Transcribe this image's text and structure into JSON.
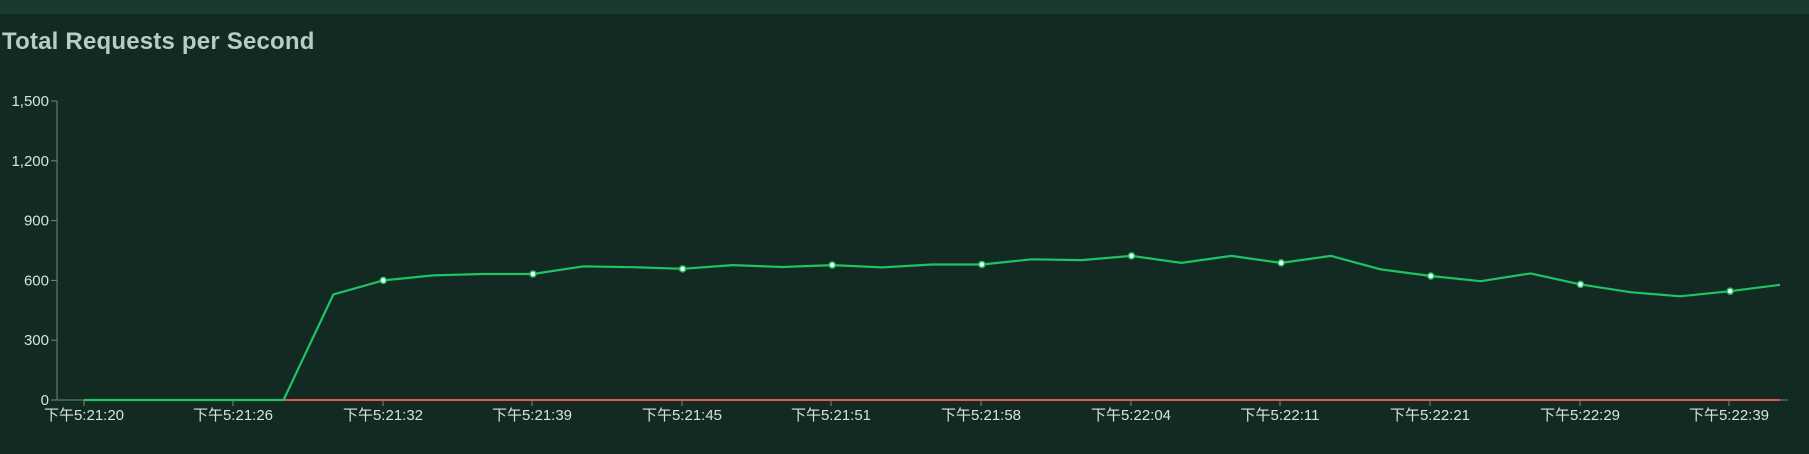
{
  "chart_data": {
    "type": "line",
    "title": "Total Requests per Second",
    "xlabel": "",
    "ylabel": "",
    "ylim": [
      0,
      1500
    ],
    "yticks": [
      "0",
      "300",
      "600",
      "900",
      "1,200",
      "1,500"
    ],
    "yticks_values": [
      0,
      300,
      600,
      900,
      1200,
      1500
    ],
    "xticks": [
      "下午5:21:20",
      "下午5:21:26",
      "下午5:21:32",
      "下午5:21:39",
      "下午5:21:45",
      "下午5:21:51",
      "下午5:21:58",
      "下午5:22:04",
      "下午5:22:11",
      "下午5:22:21",
      "下午5:22:29",
      "下午5:22:39"
    ],
    "grid": false,
    "legend": "none",
    "series": [
      {
        "color": "#1dc463",
        "values": [
          0,
          0,
          0,
          0,
          0,
          530,
          600,
          625,
          632,
          632,
          670,
          666,
          658,
          677,
          667,
          677,
          665,
          680,
          680,
          706,
          702,
          723,
          688,
          723,
          688,
          723,
          655,
          622,
          596,
          635,
          580,
          541,
          520,
          546,
          578
        ],
        "markers_at": [
          6,
          9,
          12,
          15,
          18,
          21,
          24,
          27,
          30,
          33
        ]
      },
      {
        "color": "#e0584e",
        "values": [
          0,
          0,
          0,
          0,
          0,
          0,
          0,
          0,
          0,
          0,
          0,
          0,
          0,
          0,
          0,
          0,
          0,
          0,
          0,
          0,
          0,
          0,
          0,
          0,
          0,
          0,
          0,
          0,
          0,
          0,
          0,
          0,
          0,
          0,
          0
        ]
      }
    ],
    "colors": {
      "axis": "#6f8a7e",
      "tick_text": "#d7e2dc",
      "marker_fill": "#ffffff"
    }
  }
}
